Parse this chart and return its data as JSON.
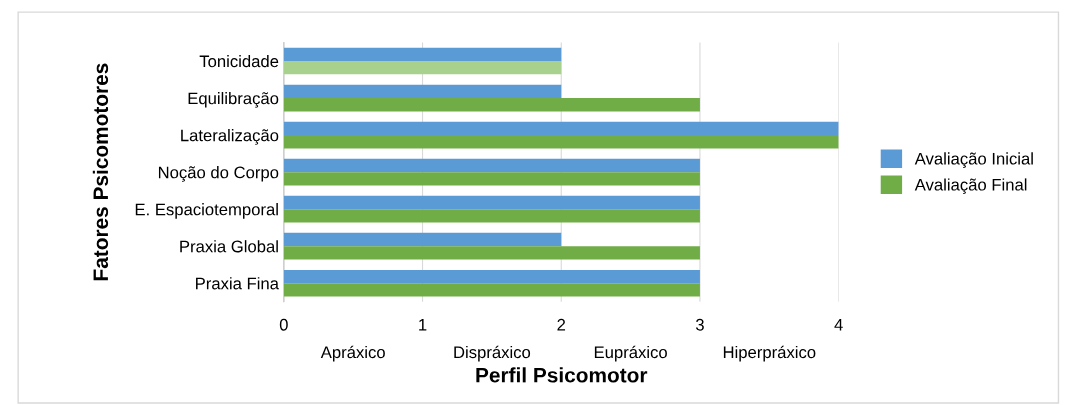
{
  "chart_data": {
    "type": "bar",
    "orientation": "horizontal",
    "xlabel": "Perfil Psicomotor",
    "ylabel": "Fatores Psicomotores",
    "categories": [
      "Tonicidade",
      "Equilibração",
      "Lateralização",
      "Noção do Corpo",
      "E. Espaciotemporal",
      "Praxia Global",
      "Praxia Fina"
    ],
    "series": [
      {
        "name": "Avaliação Inicial",
        "color": "#5b9bd5",
        "values": [
          2,
          2,
          4,
          3,
          3,
          2,
          3
        ]
      },
      {
        "name": "Avaliação Final",
        "color": "#70ad47",
        "colors": [
          "#a9d18e",
          "#70ad47",
          "#70ad47",
          "#70ad47",
          "#70ad47",
          "#70ad47",
          "#70ad47"
        ],
        "values": [
          2,
          3,
          4,
          3,
          3,
          3,
          3
        ]
      }
    ],
    "xlim": [
      0,
      4
    ],
    "xticks": [
      0,
      1,
      2,
      3,
      4
    ],
    "grid": "x",
    "legend": "right",
    "annotations": [
      "Apráxico",
      "Dispráxico",
      "Eupráxico",
      "Hiperpráxico"
    ]
  }
}
